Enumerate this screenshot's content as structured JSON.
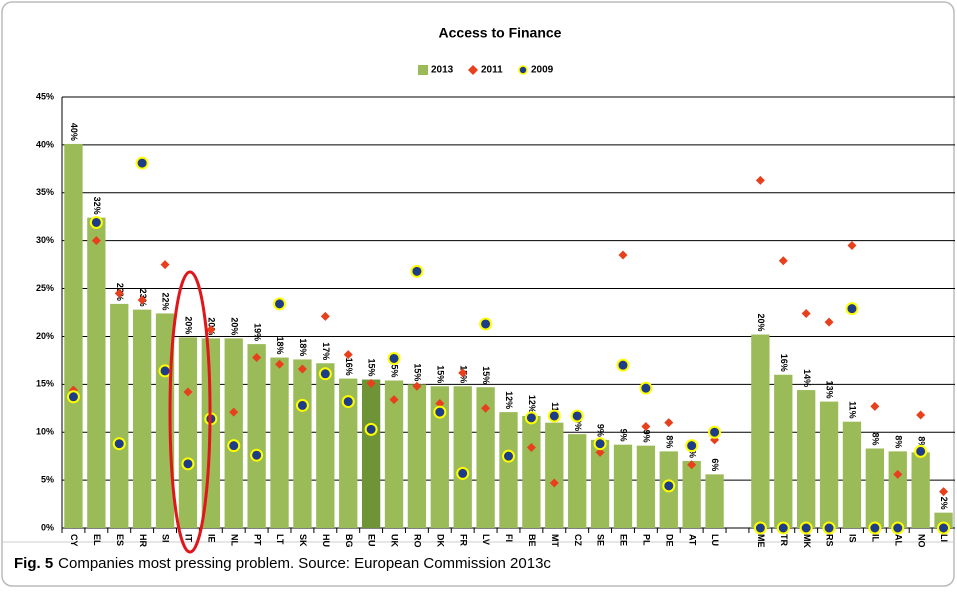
{
  "chart_data": {
    "type": "bar",
    "title": "Access to Finance",
    "categories": [
      "CY",
      "EL",
      "ES",
      "HR",
      "SI",
      "IT",
      "IE",
      "NL",
      "PT",
      "LT",
      "SK",
      "HU",
      "BG",
      "EU",
      "UK",
      "RO",
      "DK",
      "FR",
      "LV",
      "FI",
      "BE",
      "MT",
      "CZ",
      "SE",
      "EE",
      "PL",
      "DE",
      "AT",
      "LU",
      null,
      "ME",
      "TR",
      "MK",
      "RS",
      "IS",
      "IL",
      "AL",
      "NO",
      "LI"
    ],
    "highlight_category": "EU",
    "highlight_color": "#6f9437",
    "series": [
      {
        "name": "2013",
        "mark": "bar",
        "color": "#9bbb59",
        "values": [
          40.1,
          32.4,
          23.4,
          22.8,
          22.4,
          19.9,
          19.8,
          19.8,
          19.2,
          17.8,
          17.6,
          17.2,
          15.6,
          15.5,
          15.4,
          15.0,
          14.8,
          14.8,
          14.7,
          12.1,
          11.7,
          11.0,
          9.8,
          9.2,
          8.7,
          8.6,
          8.0,
          7.0,
          5.6,
          null,
          20.2,
          16.0,
          14.4,
          13.2,
          11.1,
          8.3,
          8.0,
          7.9,
          1.6
        ],
        "value_labels": [
          "40%",
          "32%",
          "23%",
          "23%",
          "22%",
          "20%",
          "20%",
          "20%",
          "19%",
          "18%",
          "18%",
          "17%",
          "16%",
          "15%",
          "15%",
          "15%",
          "15%",
          "15%",
          "15%",
          "12%",
          "12%",
          "11%",
          "10%",
          "9%",
          "9%",
          "9%",
          "8%",
          "7%",
          "6%",
          null,
          "20%",
          "16%",
          "14%",
          "13%",
          "11%",
          "8%",
          "8%",
          "8%",
          "2%"
        ]
      },
      {
        "name": "2011",
        "mark": "diamond",
        "color": "#e8401c",
        "values": [
          14.4,
          30.0,
          24.5,
          23.8,
          27.5,
          14.2,
          20.7,
          12.1,
          17.8,
          17.1,
          16.6,
          22.1,
          18.1,
          15.1,
          13.4,
          14.8,
          13.0,
          16.2,
          12.5,
          7.5,
          8.4,
          4.7,
          11.7,
          7.9,
          28.5,
          10.6,
          11.0,
          6.6,
          9.2,
          null,
          36.3,
          27.9,
          22.4,
          21.5,
          29.5,
          12.7,
          5.6,
          11.8,
          3.8
        ]
      },
      {
        "name": "2009",
        "mark": "dot",
        "color": "#1f3c88",
        "outline": "#ffff00",
        "values": [
          13.7,
          31.9,
          8.8,
          38.1,
          16.4,
          6.7,
          11.4,
          8.6,
          7.6,
          23.4,
          12.8,
          16.1,
          13.2,
          10.3,
          17.7,
          26.8,
          12.1,
          5.7,
          21.3,
          7.5,
          11.5,
          11.7,
          11.7,
          8.8,
          17.0,
          14.6,
          4.4,
          8.6,
          10.0,
          null,
          0,
          0,
          0,
          0,
          22.9,
          0,
          0,
          8.0,
          0
        ]
      }
    ],
    "ylim": [
      0,
      45
    ],
    "yticks": [
      {
        "value": 0,
        "label": "0%"
      },
      {
        "value": 5,
        "label": "5%"
      },
      {
        "value": 10,
        "label": "10%"
      },
      {
        "value": 15,
        "label": "15%"
      },
      {
        "value": 20,
        "label": "20%"
      },
      {
        "value": 25,
        "label": "25%"
      },
      {
        "value": 30,
        "label": "30%"
      },
      {
        "value": 35,
        "label": "35%"
      },
      {
        "value": 40,
        "label": "40%"
      },
      {
        "value": 45,
        "label": "45%"
      }
    ],
    "grid": true,
    "legend": "top"
  },
  "caption": {
    "label": "Fig. 5",
    "text": "Companies most pressing problem. Source: European Commission 2013c"
  }
}
